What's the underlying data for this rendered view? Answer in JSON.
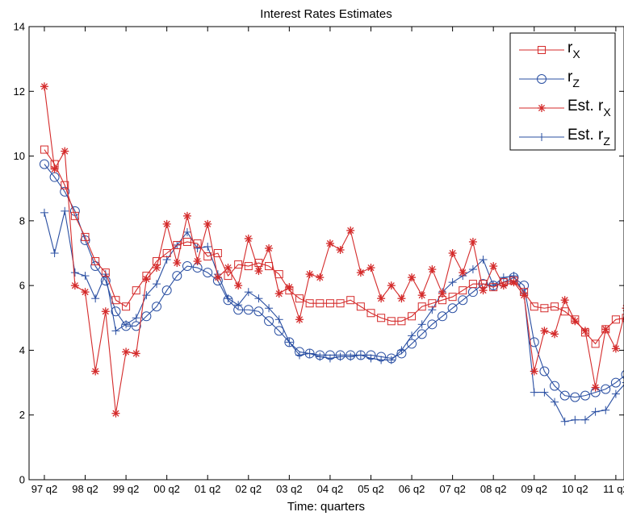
{
  "chart_data": {
    "type": "line",
    "title": "Interest Rates Estimates",
    "xlabel": "Time: quarters",
    "ylabel": "",
    "ylim": [
      0,
      14
    ],
    "yticks": [
      0,
      2,
      4,
      6,
      8,
      10,
      12,
      14
    ],
    "xlim": [
      0.5,
      58.8
    ],
    "xticks": [
      {
        "x": 2,
        "label": "97 q2"
      },
      {
        "x": 6,
        "label": "98 q2"
      },
      {
        "x": 10,
        "label": "99 q2"
      },
      {
        "x": 14,
        "label": "00 q2"
      },
      {
        "x": 18,
        "label": "01 q2"
      },
      {
        "x": 22,
        "label": "02 q2"
      },
      {
        "x": 26,
        "label": "03 q2"
      },
      {
        "x": 30,
        "label": "04 q2"
      },
      {
        "x": 34,
        "label": "05 q2"
      },
      {
        "x": 38,
        "label": "06 q2"
      },
      {
        "x": 42,
        "label": "07 q2"
      },
      {
        "x": 46,
        "label": "08 q2"
      },
      {
        "x": 50,
        "label": "09 q2"
      },
      {
        "x": 54,
        "label": "10 q2"
      },
      {
        "x": 58,
        "label": "11 q2"
      }
    ],
    "grid": false,
    "legend_position": "top-right",
    "x_start": 2,
    "series": [
      {
        "name": "r_X",
        "label_main": "r",
        "label_sub": "X",
        "color": "#d42a2a",
        "marker": "square",
        "values": [
          10.2,
          9.75,
          9.1,
          8.15,
          7.5,
          6.75,
          6.4,
          5.55,
          5.35,
          5.85,
          6.3,
          6.75,
          7.0,
          7.25,
          7.35,
          7.3,
          6.9,
          7.0,
          6.3,
          6.65,
          6.6,
          6.7,
          6.6,
          6.35,
          5.85,
          5.6,
          5.45,
          5.45,
          5.45,
          5.45,
          5.55,
          5.35,
          5.15,
          5.0,
          4.9,
          4.9,
          5.05,
          5.35,
          5.45,
          5.55,
          5.65,
          5.85,
          6.05,
          6.05,
          5.95,
          6.1,
          6.15,
          5.8,
          5.35,
          5.3,
          5.35,
          5.2,
          4.95,
          4.55,
          4.2,
          4.65,
          4.95,
          5.0,
          4.85
        ]
      },
      {
        "name": "r_Z",
        "label_main": "r",
        "label_sub": "Z",
        "color": "#2a4fa2",
        "marker": "circle",
        "values": [
          9.75,
          9.35,
          8.9,
          8.3,
          7.4,
          6.6,
          6.15,
          5.2,
          4.75,
          4.75,
          5.05,
          5.35,
          5.85,
          6.3,
          6.6,
          6.55,
          6.4,
          6.15,
          5.55,
          5.25,
          5.25,
          5.2,
          4.9,
          4.6,
          4.25,
          3.95,
          3.9,
          3.85,
          3.85,
          3.85,
          3.85,
          3.85,
          3.85,
          3.8,
          3.75,
          3.9,
          4.2,
          4.5,
          4.8,
          5.05,
          5.3,
          5.55,
          5.8,
          6.05,
          6.0,
          6.1,
          6.25,
          6.0,
          4.25,
          3.35,
          2.9,
          2.6,
          2.55,
          2.6,
          2.7,
          2.8,
          3.0,
          3.25,
          3.6
        ]
      },
      {
        "name": "Est. r_X",
        "label_main": "Est. r",
        "label_sub": "X",
        "color": "#d42a2a",
        "marker": "star",
        "values": [
          12.15,
          9.6,
          10.15,
          6.0,
          5.8,
          3.35,
          5.2,
          2.05,
          3.95,
          3.9,
          6.2,
          6.55,
          7.9,
          6.7,
          8.15,
          6.75,
          7.9,
          6.25,
          6.55,
          6.0,
          7.45,
          6.45,
          7.15,
          5.75,
          5.95,
          4.95,
          6.35,
          6.25,
          7.3,
          7.1,
          7.7,
          6.4,
          6.55,
          5.6,
          6.0,
          5.6,
          6.25,
          5.7,
          6.5,
          5.75,
          7.0,
          6.4,
          7.35,
          5.85,
          6.6,
          6.0,
          6.1,
          5.7,
          3.35,
          4.6,
          4.5,
          5.55,
          4.9,
          4.6,
          2.85,
          4.65,
          4.05,
          5.3,
          3.35
        ]
      },
      {
        "name": "Est. r_Z",
        "label_main": "Est. r",
        "label_sub": "Z",
        "color": "#2a4fa2",
        "marker": "plus",
        "values": [
          8.25,
          7.0,
          8.3,
          6.4,
          6.3,
          5.6,
          6.35,
          4.6,
          4.8,
          5.0,
          5.7,
          6.05,
          6.8,
          7.25,
          7.65,
          7.15,
          7.2,
          6.35,
          5.6,
          5.4,
          5.8,
          5.6,
          5.3,
          4.95,
          4.25,
          3.85,
          3.9,
          3.8,
          3.75,
          3.8,
          3.8,
          3.85,
          3.75,
          3.7,
          3.7,
          4.0,
          4.45,
          4.8,
          5.25,
          5.8,
          6.1,
          6.3,
          6.5,
          6.8,
          6.0,
          6.25,
          6.3,
          5.75,
          2.7,
          2.7,
          2.4,
          1.8,
          1.85,
          1.85,
          2.1,
          2.15,
          2.65,
          3.0,
          3.95
        ]
      }
    ]
  }
}
